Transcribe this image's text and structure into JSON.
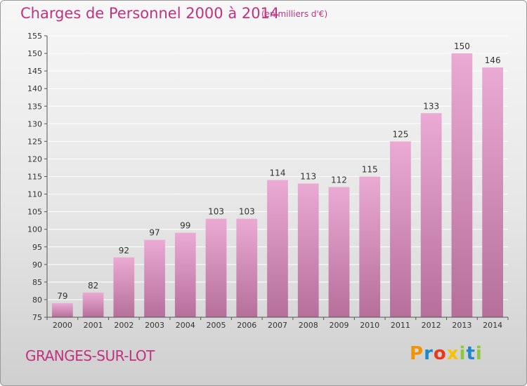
{
  "header": {
    "title": "Charges de Personnel 2000 à 2014",
    "subtitle": "(en milliers d'€)"
  },
  "footer": {
    "place": "GRANGES-SUR-LOT",
    "logo_text": "Proxiti",
    "logo_colors": [
      "#f39200",
      "#1e88c8",
      "#e8391e",
      "#f5c400",
      "#8dc63f",
      "#1e88c8",
      "#8dc63f"
    ]
  },
  "colors": {
    "bar_top": "#eaaad3",
    "bar_bottom": "#b56f9a",
    "accent": "#c2317e",
    "grid": "#ffffff"
  },
  "chart_data": {
    "type": "bar",
    "categories": [
      "2000",
      "2001",
      "2002",
      "2003",
      "2004",
      "2005",
      "2006",
      "2007",
      "2008",
      "2009",
      "2010",
      "2011",
      "2012",
      "2013",
      "2014"
    ],
    "values": [
      79,
      82,
      92,
      97,
      99,
      103,
      103,
      114,
      113,
      112,
      115,
      125,
      133,
      150,
      146
    ],
    "ylim": [
      75,
      155
    ],
    "yticks": [
      75,
      80,
      85,
      90,
      95,
      100,
      105,
      110,
      115,
      120,
      125,
      130,
      135,
      140,
      145,
      150,
      155
    ],
    "grid": true
  }
}
